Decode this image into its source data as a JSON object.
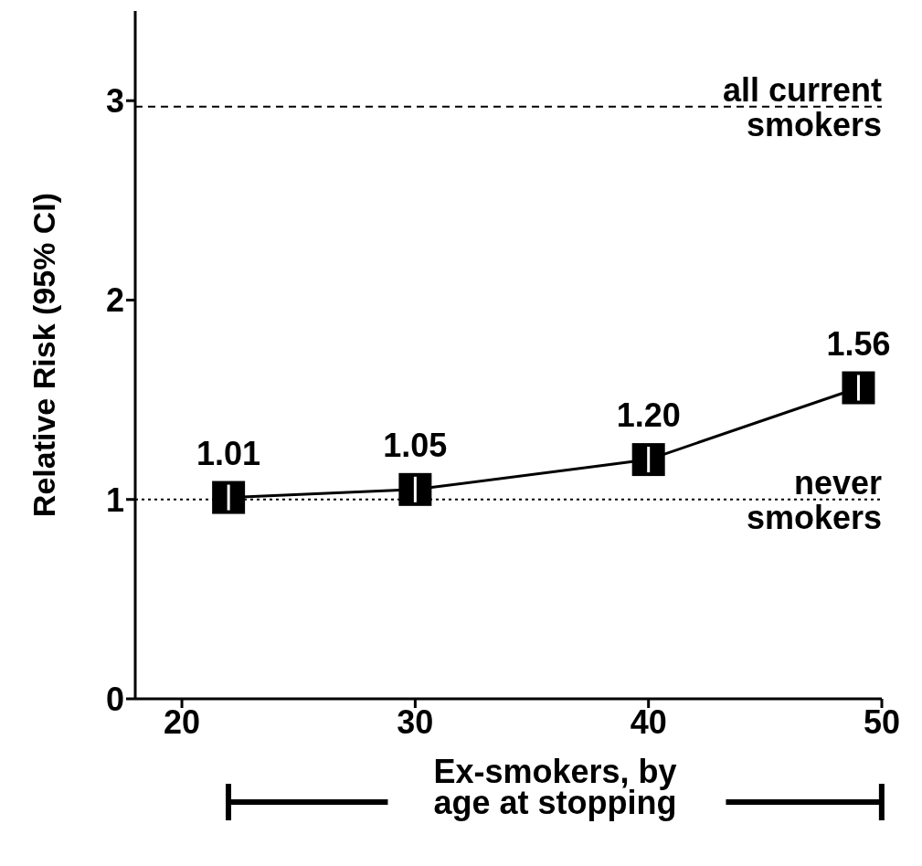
{
  "chart_data": {
    "type": "line",
    "xlabel": "Ex-smokers, by age at stopping",
    "ylabel": "Relative Risk (95% CI)",
    "x": [
      22,
      30,
      40,
      49
    ],
    "series": [
      {
        "color": "#000000",
        "values": [
          1.01,
          1.05,
          1.2,
          1.56
        ],
        "value_labels": [
          "1.01",
          "1.05",
          "1.20",
          "1.56"
        ]
      }
    ],
    "xlim": [
      18,
      50
    ],
    "xticks": [
      20,
      30,
      40,
      50
    ],
    "ylim": [
      0,
      3.45
    ],
    "yticks": [
      0,
      1,
      2,
      3
    ],
    "ref_lines": [
      {
        "axis": "y",
        "value": 2.97,
        "label": "all current smokers",
        "line_style": "dashed",
        "color": "#000000"
      },
      {
        "axis": "y",
        "value": 1,
        "label": "never smokers",
        "line_style": "dotted",
        "color": "#000000"
      }
    ],
    "marker": "square",
    "line_style": "solid",
    "grid": false,
    "legend": false
  }
}
